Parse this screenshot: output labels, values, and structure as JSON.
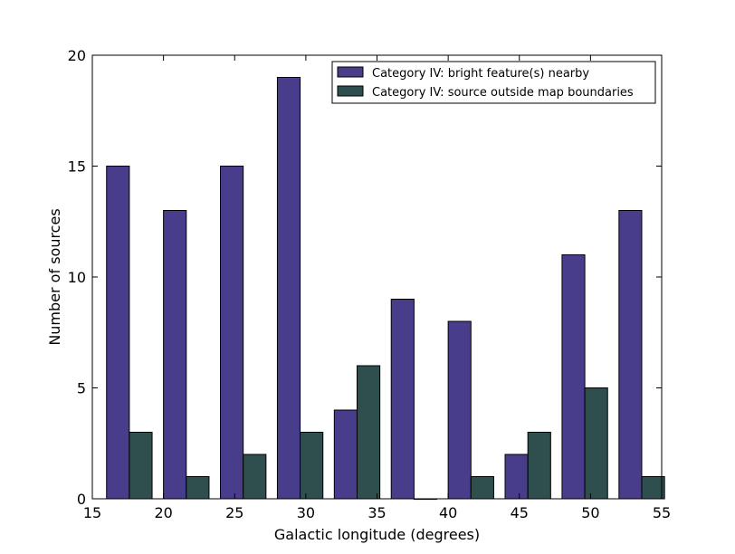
{
  "chart_data": {
    "type": "bar",
    "xlabel": "Galactic longitude (degrees)",
    "ylabel": "Number of sources",
    "xlim": [
      15,
      55
    ],
    "ylim": [
      0,
      20
    ],
    "xticks": [
      15,
      20,
      25,
      30,
      35,
      40,
      45,
      50,
      55
    ],
    "yticks": [
      0,
      5,
      10,
      15,
      20
    ],
    "bin_edges": [
      16,
      20,
      24,
      28,
      32,
      36,
      40,
      44,
      48,
      52,
      56
    ],
    "grid": false,
    "legend_position": "top-right",
    "series": [
      {
        "name": "Category IV: bright feature(s) nearby",
        "color": "#483D8B",
        "values": [
          15,
          13,
          15,
          19,
          4,
          9,
          8,
          2,
          11,
          13
        ]
      },
      {
        "name": "Category IV: source outside map boundaries",
        "color": "#2F4F4F",
        "values": [
          3,
          1,
          2,
          3,
          6,
          0,
          1,
          3,
          5,
          1
        ]
      }
    ]
  }
}
